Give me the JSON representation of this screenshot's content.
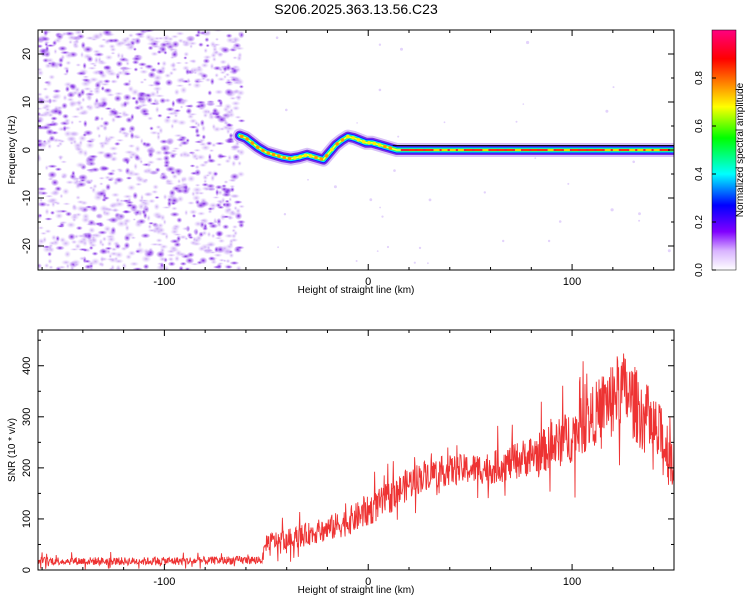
{
  "title": "S206.2025.363.13.56.C23",
  "chart_data": [
    {
      "type": "heatmap",
      "xlabel": "Height of straight line (km)",
      "ylabel": "Frequency (Hz)",
      "xlim": [
        -162,
        150
      ],
      "ylim": [
        -25,
        25
      ],
      "xticks": [
        -100,
        0,
        100
      ],
      "yticks": [
        -20,
        -10,
        0,
        10,
        20
      ],
      "noise_region_x": [
        -162,
        -62
      ],
      "ridge": {
        "x": [
          -63,
          -60,
          -57,
          -54,
          -50,
          -46,
          -42,
          -38,
          -34,
          -30,
          -26,
          -22,
          -19,
          -16,
          -13,
          -10,
          -7,
          -4,
          -1,
          2,
          6,
          10,
          14,
          150
        ],
        "y": [
          3.0,
          2.5,
          1.5,
          0.5,
          -0.5,
          -1.0,
          -1.5,
          -1.8,
          -1.5,
          -1.0,
          -1.5,
          -2.0,
          -0.5,
          1.0,
          2.0,
          2.8,
          2.5,
          2.0,
          1.5,
          1.5,
          1.0,
          0.5,
          0.0,
          0.0
        ]
      },
      "colorbar": {
        "label": "Normalized spectral amplitude",
        "range": [
          0.0,
          1.0
        ],
        "ticks": [
          0.0,
          0.2,
          0.4,
          0.6,
          0.8
        ],
        "tick_labels": [
          "0.0",
          "0.2",
          "0.4",
          "0.6",
          "0.8"
        ],
        "colormap": [
          "#ffffff",
          "#d9b3ff",
          "#8000ff",
          "#0000ff",
          "#00ffff",
          "#00ff00",
          "#ffff00",
          "#ff8000",
          "#ff0000",
          "#ff0080"
        ]
      }
    },
    {
      "type": "line",
      "xlabel": "Height of straight line (km)",
      "ylabel": "SNR (10 * v/v)",
      "xlim": [
        -162,
        150
      ],
      "ylim": [
        0,
        470
      ],
      "xticks": [
        -100,
        0,
        100
      ],
      "yticks": [
        0,
        100,
        200,
        300,
        400
      ],
      "series": [
        {
          "name": "SNR",
          "color": "#ee3333",
          "trend_x": [
            -162,
            -120,
            -80,
            -52,
            -50,
            -40,
            -30,
            -20,
            -10,
            0,
            10,
            20,
            30,
            40,
            50,
            60,
            70,
            80,
            90,
            100,
            110,
            120,
            125,
            130,
            140,
            150
          ],
          "trend_y": [
            18,
            17,
            18,
            20,
            55,
            60,
            70,
            80,
            95,
            115,
            140,
            170,
            190,
            195,
            198,
            200,
            210,
            225,
            240,
            265,
            300,
            345,
            355,
            330,
            275,
            215
          ],
          "noise_amplitude": [
            8,
            8,
            8,
            8,
            18,
            20,
            22,
            25,
            28,
            30,
            32,
            32,
            30,
            30,
            30,
            32,
            35,
            40,
            45,
            55,
            60,
            70,
            75,
            75,
            70,
            65
          ]
        }
      ]
    }
  ]
}
